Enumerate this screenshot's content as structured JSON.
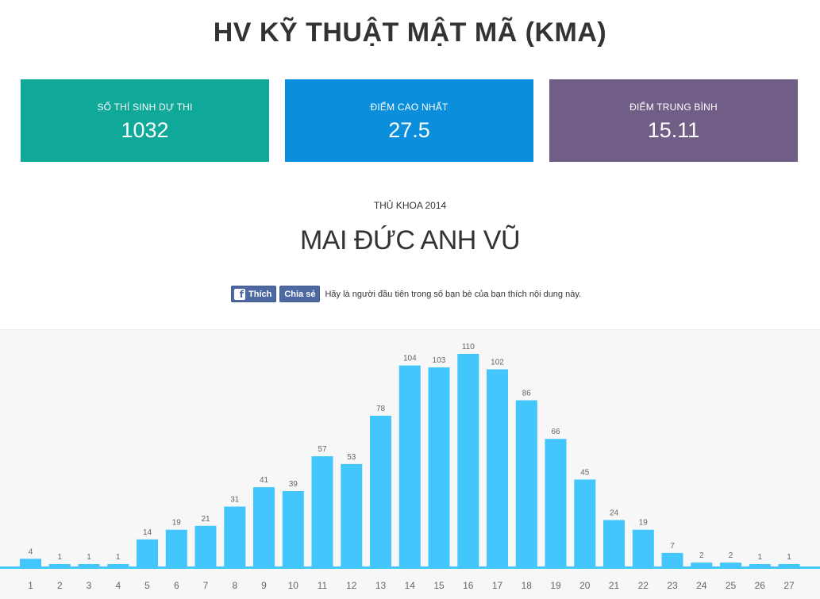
{
  "page": {
    "title": "HV KỸ THUẬT MẬT MÃ (KMA)"
  },
  "stats": {
    "candidates": {
      "label": "SỐ THÍ SINH DỰ THI",
      "value": "1032",
      "color": "#0fa899"
    },
    "highest": {
      "label": "ĐIỂM CAO NHẤT",
      "value": "27.5",
      "color": "#0b8fdc"
    },
    "average": {
      "label": "ĐIỂM TRUNG BÌNH",
      "value": "15.11",
      "color": "#705e87"
    }
  },
  "valedictorian": {
    "caption": "THỦ KHOA 2014",
    "name": "MAI ĐỨC ANH VŨ"
  },
  "facebook": {
    "like_label": "Thích",
    "share_label": "Chia sẻ",
    "prompt": "Hãy là người đầu tiên trong số bạn bè của bạn thích nội dung này.",
    "color": "#4e69a2"
  },
  "chart_data": {
    "type": "bar",
    "categories": [
      "1",
      "2",
      "3",
      "4",
      "5",
      "6",
      "7",
      "8",
      "9",
      "10",
      "11",
      "12",
      "13",
      "14",
      "15",
      "16",
      "17",
      "18",
      "19",
      "20",
      "21",
      "22",
      "23",
      "24",
      "25",
      "26",
      "27"
    ],
    "values": [
      4,
      1,
      1,
      1,
      14,
      19,
      21,
      31,
      41,
      39,
      57,
      53,
      78,
      104,
      103,
      110,
      102,
      86,
      66,
      45,
      24,
      19,
      7,
      2,
      2,
      1,
      1
    ],
    "title": "",
    "xlabel": "",
    "ylabel": "",
    "ylim": [
      0,
      110
    ],
    "grid": false,
    "bar_color": "#43c6fb",
    "label_color": "#666666"
  }
}
